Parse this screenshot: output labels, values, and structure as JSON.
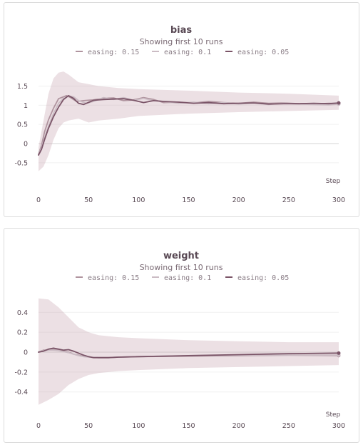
{
  "chart_data": [
    {
      "type": "line",
      "title": "bias",
      "subtitle": "Showing first 10 runs",
      "xlabel": "Step",
      "ylabel": "",
      "xlim": [
        0,
        300
      ],
      "ylim": [
        -0.8,
        1.9
      ],
      "xticks": [
        0,
        50,
        100,
        150,
        200,
        250,
        300
      ],
      "yticks": [
        -0.5,
        0,
        0.5,
        1,
        1.5
      ],
      "ytick_labels": [
        "-0.5",
        "0",
        "0.5",
        "1",
        "1.5"
      ],
      "legend_position": "top-center",
      "band": {
        "x": [
          0,
          5,
          10,
          15,
          20,
          25,
          30,
          40,
          50,
          60,
          80,
          100,
          150,
          200,
          250,
          300
        ],
        "upper": [
          -0.1,
          0.6,
          1.3,
          1.7,
          1.85,
          1.88,
          1.8,
          1.6,
          1.55,
          1.5,
          1.45,
          1.42,
          1.38,
          1.33,
          1.3,
          1.25
        ],
        "lower": [
          -0.72,
          -0.6,
          -0.3,
          0.1,
          0.4,
          0.55,
          0.6,
          0.65,
          0.55,
          0.6,
          0.65,
          0.72,
          0.78,
          0.82,
          0.85,
          0.88
        ]
      },
      "series": [
        {
          "name": "easing: 0.15",
          "color": "#b0949f",
          "x": [
            0,
            3,
            6,
            10,
            15,
            20,
            25,
            28,
            32,
            38,
            45,
            55,
            65,
            75,
            85,
            95,
            105,
            115,
            125,
            140,
            155,
            170,
            185,
            200,
            215,
            230,
            245,
            260,
            275,
            290,
            300
          ],
          "y": [
            -0.28,
            -0.05,
            0.3,
            0.62,
            0.92,
            1.17,
            1.22,
            1.25,
            1.2,
            1.1,
            1.12,
            1.14,
            1.18,
            1.19,
            1.12,
            1.14,
            1.2,
            1.15,
            1.07,
            1.08,
            1.06,
            1.1,
            1.07,
            1.05,
            1.08,
            1.05,
            1.06,
            1.04,
            1.03,
            1.05,
            1.05
          ]
        },
        {
          "name": "easing: 0.1",
          "color": "#cbbcc4",
          "x": [
            0,
            3,
            6,
            10,
            15,
            20,
            25,
            30,
            35,
            40,
            48,
            55,
            65,
            75,
            85,
            95,
            105,
            115,
            125,
            140,
            155,
            170,
            185,
            200,
            215,
            230,
            245,
            260,
            275,
            290,
            300
          ],
          "y": [
            -0.3,
            -0.1,
            0.15,
            0.45,
            0.78,
            1.05,
            1.18,
            1.24,
            1.22,
            1.12,
            1.05,
            1.1,
            1.2,
            1.15,
            1.2,
            1.13,
            1.18,
            1.12,
            1.1,
            1.05,
            1.08,
            1.04,
            1.07,
            1.03,
            1.06,
            1.02,
            1.05,
            1.03,
            1.02,
            1.01,
            1.03
          ]
        },
        {
          "name": "easing: 0.05",
          "color": "#7b5568",
          "x": [
            0,
            3,
            6,
            10,
            15,
            20,
            25,
            30,
            35,
            40,
            45,
            55,
            65,
            75,
            85,
            95,
            105,
            115,
            125,
            140,
            155,
            170,
            185,
            200,
            215,
            230,
            245,
            260,
            275,
            290,
            300
          ],
          "y": [
            -0.3,
            -0.15,
            0.1,
            0.4,
            0.7,
            0.95,
            1.15,
            1.25,
            1.18,
            1.05,
            1.02,
            1.13,
            1.15,
            1.16,
            1.17,
            1.13,
            1.07,
            1.12,
            1.1,
            1.08,
            1.05,
            1.07,
            1.04,
            1.05,
            1.06,
            1.03,
            1.04,
            1.04,
            1.05,
            1.04,
            1.06
          ]
        }
      ]
    },
    {
      "type": "line",
      "title": "weight",
      "subtitle": "Showing first 10 runs",
      "xlabel": "Step",
      "ylabel": "",
      "xlim": [
        0,
        300
      ],
      "ylim": [
        -0.56,
        0.56
      ],
      "xticks": [
        0,
        50,
        100,
        150,
        200,
        250,
        300
      ],
      "yticks": [
        -0.4,
        -0.2,
        0,
        0.2,
        0.4
      ],
      "ytick_labels": [
        "-0.4",
        "-0.2",
        "0",
        "0.2",
        "0.4"
      ],
      "legend_position": "top-center",
      "band": {
        "x": [
          0,
          10,
          20,
          30,
          40,
          50,
          60,
          80,
          100,
          150,
          200,
          250,
          300
        ],
        "upper": [
          0.54,
          0.53,
          0.45,
          0.35,
          0.25,
          0.2,
          0.17,
          0.15,
          0.14,
          0.12,
          0.11,
          0.1,
          0.1
        ],
        "lower": [
          -0.53,
          -0.48,
          -0.42,
          -0.33,
          -0.27,
          -0.23,
          -0.21,
          -0.19,
          -0.18,
          -0.16,
          -0.15,
          -0.14,
          -0.13
        ]
      },
      "series": [
        {
          "name": "easing: 0.15",
          "color": "#b0949f",
          "x": [
            0,
            5,
            10,
            15,
            20,
            25,
            30,
            35,
            40,
            45,
            50,
            60,
            70,
            80,
            100,
            150,
            200,
            250,
            300
          ],
          "y": [
            0.0,
            0.02,
            0.02,
            0.03,
            0.02,
            0.01,
            0.0,
            -0.02,
            -0.03,
            -0.04,
            -0.05,
            -0.055,
            -0.055,
            -0.05,
            -0.045,
            -0.04,
            -0.035,
            -0.03,
            -0.035
          ]
        },
        {
          "name": "easing: 0.1",
          "color": "#cbbcc4",
          "x": [
            0,
            5,
            10,
            15,
            20,
            25,
            30,
            35,
            40,
            45,
            50,
            60,
            70,
            80,
            100,
            150,
            200,
            250,
            300
          ],
          "y": [
            0.0,
            0.015,
            0.02,
            0.02,
            0.015,
            0.005,
            -0.005,
            -0.02,
            -0.035,
            -0.045,
            -0.05,
            -0.055,
            -0.055,
            -0.05,
            -0.045,
            -0.035,
            -0.03,
            -0.03,
            -0.03
          ]
        },
        {
          "name": "easing: 0.05",
          "color": "#7b5568",
          "x": [
            0,
            5,
            10,
            15,
            20,
            25,
            30,
            35,
            40,
            45,
            50,
            55,
            60,
            70,
            80,
            100,
            150,
            200,
            250,
            300
          ],
          "y": [
            0.0,
            0.01,
            0.03,
            0.04,
            0.03,
            0.02,
            0.025,
            0.01,
            -0.01,
            -0.03,
            -0.045,
            -0.055,
            -0.055,
            -0.055,
            -0.05,
            -0.045,
            -0.035,
            -0.025,
            -0.015,
            -0.01
          ]
        }
      ]
    }
  ]
}
